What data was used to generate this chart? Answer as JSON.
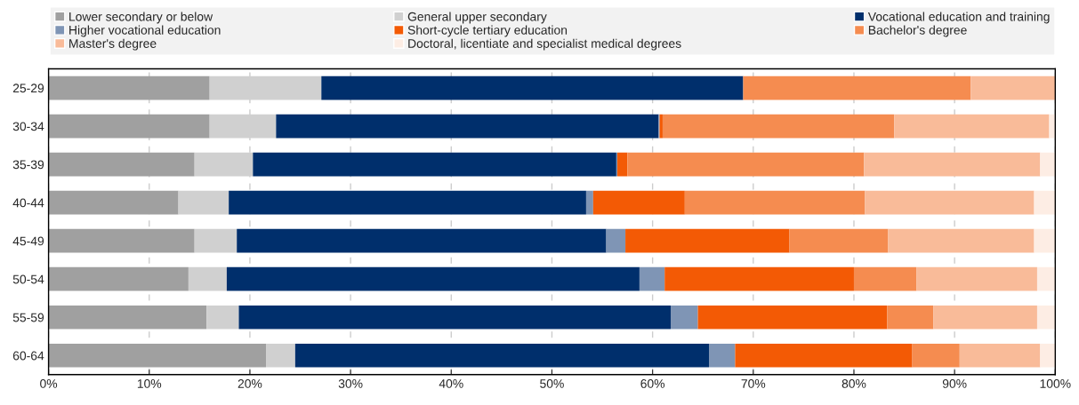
{
  "chart_data": {
    "type": "bar",
    "orientation": "horizontal",
    "stacked": true,
    "categories": [
      "25-29",
      "30-34",
      "35-39",
      "40-44",
      "45-49",
      "50-54",
      "55-59",
      "60-64"
    ],
    "series": [
      {
        "name": "Lower secondary or below",
        "color": "#a0a0a0",
        "values": [
          16.0,
          16.0,
          14.5,
          12.9,
          14.5,
          13.9,
          15.7,
          21.6
        ]
      },
      {
        "name": "General upper secondary",
        "color": "#d0d0d0",
        "values": [
          11.1,
          6.6,
          5.8,
          5.0,
          4.2,
          3.8,
          3.2,
          2.9
        ]
      },
      {
        "name": "Vocational education and training",
        "color": "#002f6c",
        "values": [
          41.9,
          38.0,
          36.1,
          35.5,
          36.7,
          41.0,
          42.9,
          41.1
        ]
      },
      {
        "name": "Higher vocational education",
        "color": "#7f95b5",
        "values": [
          0,
          0.1,
          0.1,
          0.7,
          1.9,
          2.5,
          2.7,
          2.6
        ]
      },
      {
        "name": "Short-cycle tertiary education",
        "color": "#f35a05",
        "values": [
          0,
          0.3,
          1.0,
          9.1,
          16.3,
          18.8,
          18.8,
          17.6
        ]
      },
      {
        "name": "Bachelor's degree",
        "color": "#f58c50",
        "values": [
          22.6,
          23.0,
          23.5,
          17.9,
          9.8,
          6.2,
          4.6,
          4.7
        ]
      },
      {
        "name": "Master's degree",
        "color": "#f9bb99",
        "values": [
          8.4,
          15.4,
          17.5,
          16.8,
          14.5,
          12.0,
          10.3,
          8.0
        ]
      },
      {
        "name": "Doctoral, licentiate and specialist medical degrees",
        "color": "#fdede4",
        "values": [
          0,
          0.6,
          1.5,
          2.1,
          2.1,
          1.8,
          1.8,
          1.5
        ]
      }
    ],
    "xlim": [
      0,
      100
    ],
    "xticks": [
      {
        "value": 0,
        "label": "0%"
      },
      {
        "value": 10,
        "label": "10%"
      },
      {
        "value": 20,
        "label": "20%"
      },
      {
        "value": 30,
        "label": "30%"
      },
      {
        "value": 40,
        "label": "40%"
      },
      {
        "value": 50,
        "label": "50%"
      },
      {
        "value": 60,
        "label": "60%"
      },
      {
        "value": 70,
        "label": "70%"
      },
      {
        "value": 80,
        "label": "80%"
      },
      {
        "value": 90,
        "label": "90%"
      },
      {
        "value": 100,
        "label": "100%"
      }
    ],
    "grid": "x",
    "legend": "top"
  }
}
